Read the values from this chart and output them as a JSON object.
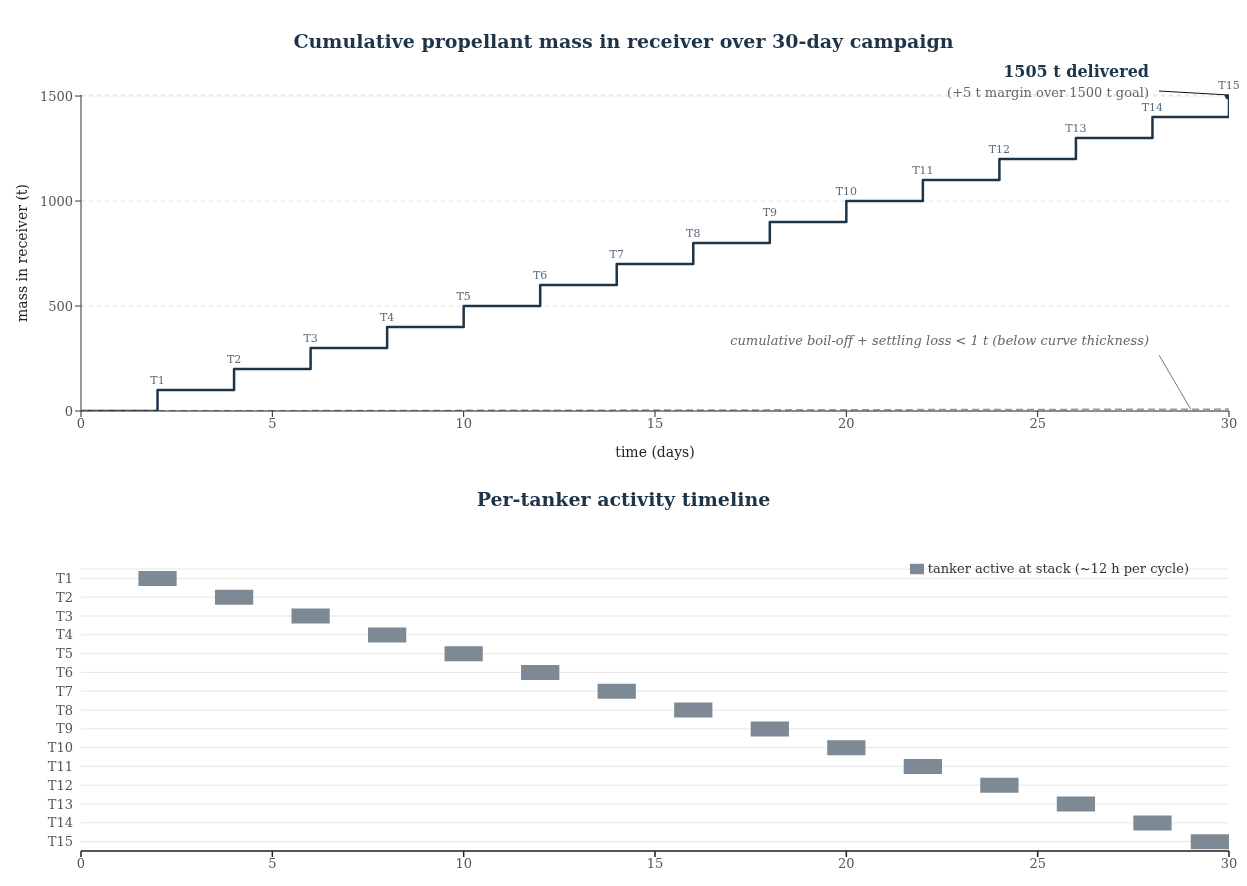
{
  "chart_data": [
    {
      "type": "step",
      "title": "Cumulative propellant mass in receiver over 30-day campaign",
      "xlabel": "time (days)",
      "ylabel": "mass in receiver (t)",
      "xlim": [
        0,
        30
      ],
      "xticks": [
        0,
        5,
        10,
        15,
        20,
        25,
        30
      ],
      "ylim": [
        0,
        1505
      ],
      "yticks": [
        0,
        500,
        1000,
        1500
      ],
      "grid": "y",
      "series": [
        {
          "color": "#1d3449",
          "x": [
            0,
            2,
            4,
            6,
            8,
            10,
            12,
            14,
            16,
            18,
            20,
            22,
            24,
            26,
            28,
            30
          ],
          "values": [
            0,
            100,
            200,
            300,
            400,
            500,
            600,
            700,
            800,
            900,
            1000,
            1100,
            1200,
            1300,
            1400,
            1505
          ],
          "value_labels": [
            null,
            "T1",
            "T2",
            "T3",
            "T4",
            "T5",
            "T6",
            "T7",
            "T8",
            "T9",
            "T10",
            "T11",
            "T12",
            "T13",
            "T14",
            "T15"
          ]
        },
        {
          "type": "line",
          "line_style": "dashed",
          "color": "#999999",
          "x": [
            0,
            30
          ],
          "values": [
            0,
            9
          ]
        },
        {
          "type": "scatter",
          "marker": "circle",
          "color": "#1d3449",
          "x": [
            30
          ],
          "values": [
            1505
          ]
        }
      ],
      "annotations": [
        "1505 t delivered",
        "(+5 t margin over 1500 t goal)",
        {
          "text": "cumulative boil-off + settling loss < 1 t (below curve thickness)",
          "x": 29,
          "y": 8.7
        }
      ]
    },
    {
      "type": "bar",
      "orientation": "horizontal",
      "title": "Per-tanker activity timeline",
      "categories": [
        "T1",
        "T2",
        "T3",
        "T4",
        "T5",
        "T6",
        "T7",
        "T8",
        "T9",
        "T10",
        "T11",
        "T12",
        "T13",
        "T14",
        "T15"
      ],
      "series": [
        {
          "name": "tanker active at stack (~12 h per cycle)",
          "color": "#7d8995",
          "base": [
            1.5,
            3.5,
            5.5,
            7.5,
            9.5,
            11.5,
            13.5,
            15.5,
            17.5,
            19.5,
            21.5,
            23.5,
            25.5,
            27.5,
            29
          ],
          "values": [
            1,
            1,
            1,
            1,
            1,
            1,
            1,
            1,
            1,
            1,
            1,
            1,
            1,
            1,
            1
          ]
        }
      ],
      "xlim": [
        0,
        30
      ],
      "xticks": [
        0,
        5,
        10,
        15,
        20,
        25,
        30
      ],
      "grid": "y",
      "legend": "top right"
    }
  ]
}
